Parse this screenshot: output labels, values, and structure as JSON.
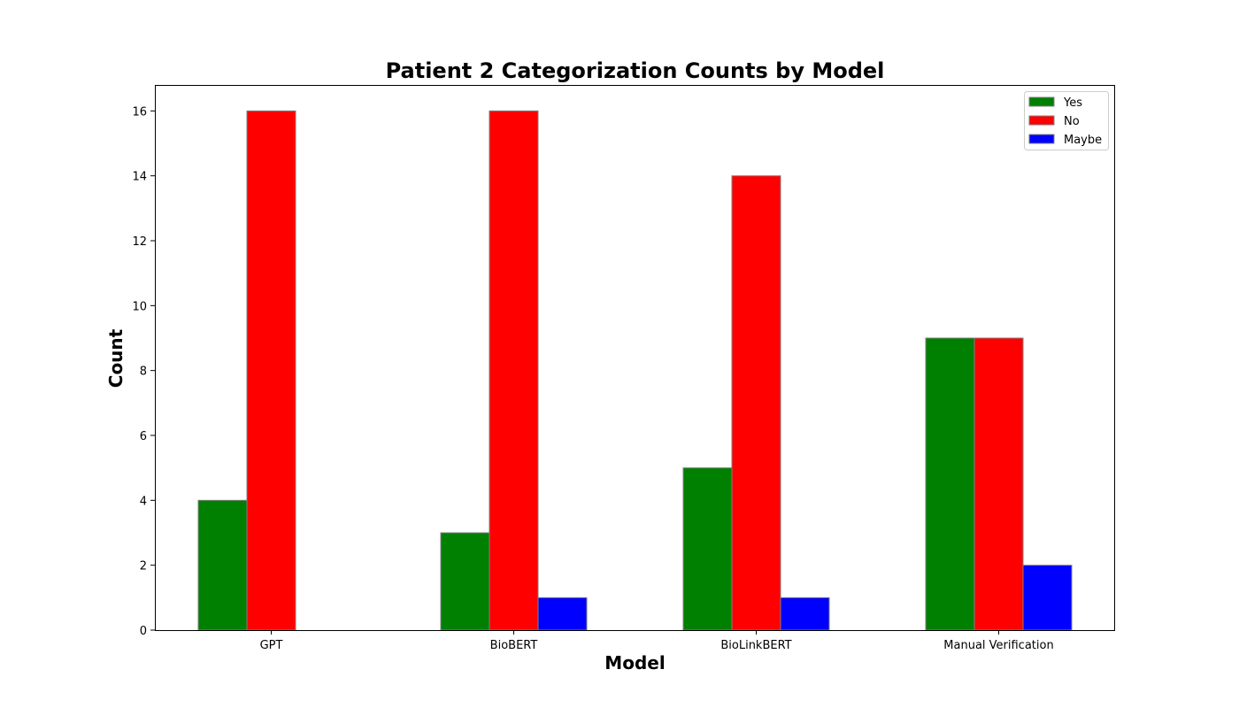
{
  "chart_data": {
    "type": "bar",
    "title": "Patient 2 Categorization Counts by Model",
    "xlabel": "Model",
    "ylabel": "Count",
    "categories": [
      "GPT",
      "BioBERT",
      "BioLinkBERT",
      "Manual Verification"
    ],
    "series": [
      {
        "name": "Yes",
        "values": [
          4,
          3,
          5,
          9
        ],
        "color": "#008000"
      },
      {
        "name": "No",
        "values": [
          16,
          16,
          14,
          9
        ],
        "color": "#ff0000"
      },
      {
        "name": "Maybe",
        "values": [
          0,
          1,
          1,
          2
        ],
        "color": "#0000ff"
      }
    ],
    "ylim": [
      0,
      16.8
    ],
    "yticks": [
      "0",
      "2",
      "4",
      "6",
      "8",
      "10",
      "12",
      "14",
      "16"
    ],
    "grid": false,
    "legend_position": "top-right",
    "bar_edge_color": "#808080"
  }
}
